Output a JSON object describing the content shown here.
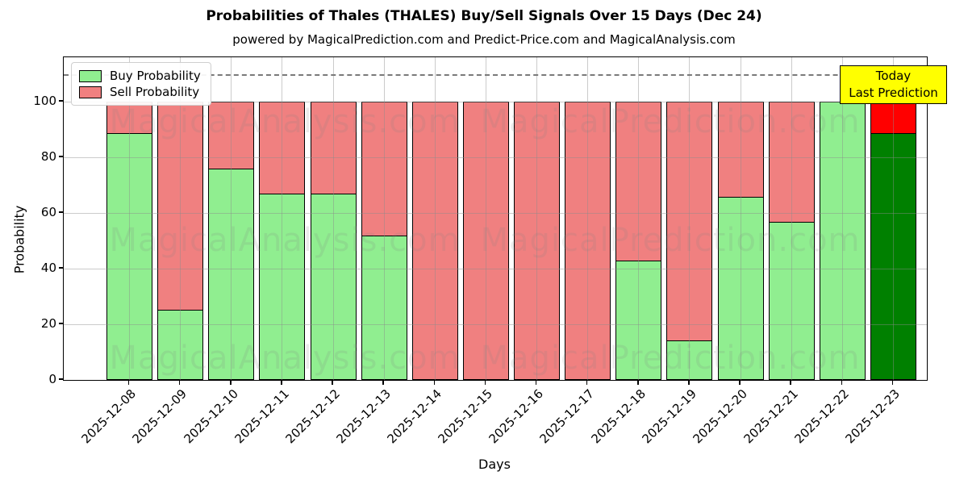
{
  "chart_data": {
    "type": "bar",
    "stacked": true,
    "title": "Probabilities of Thales (THALES) Buy/Sell Signals Over 15 Days (Dec 24)",
    "subtitle": "powered by MagicalPrediction.com and Predict-Price.com and MagicalAnalysis.com",
    "xlabel": "Days",
    "ylabel": "Probability",
    "ylim": [
      0,
      116
    ],
    "yticks": [
      0,
      20,
      40,
      60,
      80,
      100
    ],
    "grid": true,
    "threshold_line": {
      "y": 110,
      "style": "dashed",
      "color": "#7a7a7a"
    },
    "categories": [
      "2025-12-08",
      "2025-12-09",
      "2025-12-10",
      "2025-12-11",
      "2025-12-12",
      "2025-12-13",
      "2025-12-14",
      "2025-12-15",
      "2025-12-16",
      "2025-12-17",
      "2025-12-18",
      "2025-12-19",
      "2025-12-20",
      "2025-12-21",
      "2025-12-22",
      "2025-12-23"
    ],
    "series": [
      {
        "name": "Buy Probability",
        "color": "#90EE90",
        "values": [
          89,
          25,
          76,
          67,
          67,
          52,
          0,
          0,
          0,
          0,
          43,
          14,
          66,
          57,
          100,
          89
        ]
      },
      {
        "name": "Sell Probability",
        "color": "#F08080",
        "values": [
          11,
          75,
          24,
          33,
          33,
          48,
          100,
          100,
          100,
          100,
          57,
          86,
          34,
          43,
          0,
          11
        ]
      }
    ],
    "today_bar": {
      "category": "2025-12-23",
      "index": 15,
      "buy_color": "#008000",
      "sell_color": "#FF0000"
    },
    "legend": {
      "position": "upper left",
      "items": [
        {
          "label": "Buy Probability",
          "color": "#90EE90"
        },
        {
          "label": "Sell Probability",
          "color": "#F08080"
        }
      ]
    },
    "annotation": {
      "lines": [
        "Today",
        "Last Prediction"
      ],
      "bg_color": "#FFFF00"
    },
    "watermarks": {
      "left_text": "MagicalAnalysis.com",
      "right_text": "MagicalPrediction.com",
      "rows": 3
    }
  }
}
